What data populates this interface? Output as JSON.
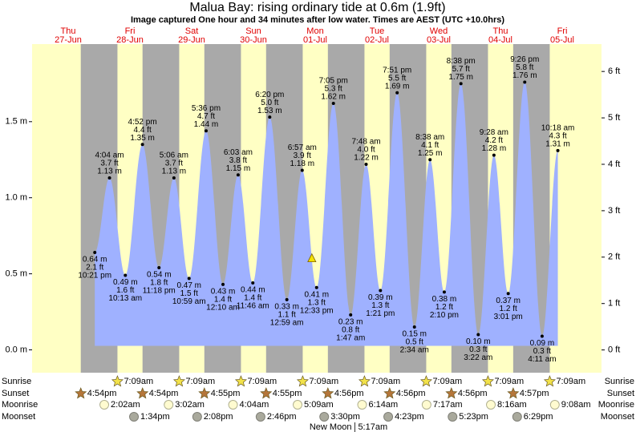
{
  "chart_data": {
    "type": "area",
    "title": "Malua Bay: rising  ordinary tide at 0.6m (1.9ft)",
    "subtitle": "Image captured One hour and 34 minutes after low water. Times are AEST (UTC +10.0hrs)",
    "now": {
      "m": 0.6,
      "ft": 1.9
    },
    "color": "#9fb1ff",
    "day_color": "#ffffc4",
    "night_color": "#a9a9a9",
    "date_color": "#e00000",
    "ylim": [
      -0.15,
      2.01
    ],
    "yticks": [
      {
        "value": 0,
        "label": "0.0 m"
      },
      {
        "value": 0.5,
        "label": "0.5 m"
      },
      {
        "value": 1,
        "label": "1.0 m"
      },
      {
        "value": 1.5,
        "label": "1.5 m"
      }
    ],
    "y2lim": [
      -0.49,
      6.59
    ],
    "y2ticks": [
      {
        "value": 0,
        "label": "0 ft"
      },
      {
        "value": 1,
        "label": "1 ft"
      },
      {
        "value": 2,
        "label": "2 ft"
      },
      {
        "value": 3,
        "label": "3 ft"
      },
      {
        "value": 4,
        "label": "4 ft"
      },
      {
        "value": 5,
        "label": "5 ft"
      },
      {
        "value": 6,
        "label": "6 ft"
      }
    ],
    "row_labels": {
      "sunrise": "Sunrise",
      "sunset": "Sunset",
      "moonrise": "Moonrise",
      "moonset": "Moonset"
    },
    "days": [
      {
        "weekday": "Thu",
        "date": "27-Jun",
        "sunset": "4:54pm",
        "tides": [
          {
            "time": "10:21 pm",
            "m": 0.64,
            "m_label": "0.64 m",
            "ft": 2.1,
            "ft_label": "2.1 ft"
          }
        ]
      },
      {
        "weekday": "Fri",
        "date": "28-Jun",
        "sunrise": "7:09am",
        "sunset": "4:54pm",
        "moonrise": "2:02am",
        "moonset": "1:34pm",
        "tides": [
          {
            "time": "4:04 am",
            "m": 1.13,
            "m_label": "1.13 m",
            "ft": 3.7,
            "ft_label": "3.7 ft"
          },
          {
            "time": "10:13 am",
            "m": 0.49,
            "m_label": "0.49 m",
            "ft": 1.6,
            "ft_label": "1.6 ft"
          },
          {
            "time": "4:52 pm",
            "m": 1.35,
            "m_label": "1.35 m",
            "ft": 4.4,
            "ft_label": "4.4 ft"
          },
          {
            "time": "11:18 pm",
            "m": 0.54,
            "m_label": "0.54 m",
            "ft": 1.8,
            "ft_label": "1.8 ft"
          }
        ]
      },
      {
        "weekday": "Sat",
        "date": "29-Jun",
        "sunrise": "7:09am",
        "sunset": "4:55pm",
        "moonrise": "3:02am",
        "moonset": "2:08pm",
        "tides": [
          {
            "time": "5:06 am",
            "m": 1.13,
            "m_label": "1.13 m",
            "ft": 3.7,
            "ft_label": "3.7 ft"
          },
          {
            "time": "10:59 am",
            "m": 0.47,
            "m_label": "0.47 m",
            "ft": 1.5,
            "ft_label": "1.5 ft"
          },
          {
            "time": "5:36 pm",
            "m": 1.44,
            "m_label": "1.44 m",
            "ft": 4.7,
            "ft_label": "4.7 ft"
          }
        ]
      },
      {
        "weekday": "Sun",
        "date": "30-Jun",
        "sunrise": "7:09am",
        "sunset": "4:55pm",
        "moonrise": "4:04am",
        "moonset": "2:46pm",
        "tides": [
          {
            "time": "12:10 am",
            "m": 0.43,
            "m_label": "0.43 m",
            "ft": 1.4,
            "ft_label": "1.4 ft"
          },
          {
            "time": "6:03 am",
            "m": 1.15,
            "m_label": "1.15 m",
            "ft": 3.8,
            "ft_label": "3.8 ft"
          },
          {
            "time": "11:46 am",
            "m": 0.44,
            "m_label": "0.44 m",
            "ft": 1.4,
            "ft_label": "1.4 ft"
          },
          {
            "time": "6:20 pm",
            "m": 1.53,
            "m_label": "1.53 m",
            "ft": 5.0,
            "ft_label": "5.0 ft"
          }
        ]
      },
      {
        "weekday": "Mon",
        "date": "01-Jul",
        "sunrise": "7:09am",
        "sunset": "4:56pm",
        "moonrise": "5:09am",
        "moonset": "3:30pm",
        "tides": [
          {
            "time": "12:59 am",
            "m": 0.33,
            "m_label": "0.33 m",
            "ft": 1.1,
            "ft_label": "1.1 ft"
          },
          {
            "time": "6:57 am",
            "m": 1.18,
            "m_label": "1.18 m",
            "ft": 3.9,
            "ft_label": "3.9 ft"
          },
          {
            "time": "12:33 pm",
            "m": 0.41,
            "m_label": "0.41 m",
            "ft": 1.3,
            "ft_label": "1.3 ft"
          },
          {
            "time": "7:05 pm",
            "m": 1.62,
            "m_label": "1.62 m",
            "ft": 5.3,
            "ft_label": "5.3 ft"
          }
        ]
      },
      {
        "weekday": "Tue",
        "date": "02-Jul",
        "sunrise": "7:09am",
        "sunset": "4:56pm",
        "moonrise": "6:14am",
        "moonset": "4:23pm",
        "moon_phase": {
          "name": "New Moon",
          "time": "5:17am"
        },
        "tides": [
          {
            "time": "1:47 am",
            "m": 0.23,
            "m_label": "0.23 m",
            "ft": 0.8,
            "ft_label": "0.8 ft"
          },
          {
            "time": "7:48 am",
            "m": 1.22,
            "m_label": "1.22 m",
            "ft": 4.0,
            "ft_label": "4.0 ft"
          },
          {
            "time": "1:21 pm",
            "m": 0.39,
            "m_label": "0.39 m",
            "ft": 1.3,
            "ft_label": "1.3 ft"
          },
          {
            "time": "7:51 pm",
            "m": 1.69,
            "m_label": "1.69 m",
            "ft": 5.5,
            "ft_label": "5.5 ft"
          }
        ]
      },
      {
        "weekday": "Wed",
        "date": "03-Jul",
        "sunrise": "7:09am",
        "sunset": "4:56pm",
        "moonrise": "7:17am",
        "moonset": "5:23pm",
        "tides": [
          {
            "time": "2:34 am",
            "m": 0.15,
            "m_label": "0.15 m",
            "ft": 0.5,
            "ft_label": "0.5 ft"
          },
          {
            "time": "8:38 am",
            "m": 1.25,
            "m_label": "1.25 m",
            "ft": 4.1,
            "ft_label": "4.1 ft"
          },
          {
            "time": "2:10 pm",
            "m": 0.38,
            "m_label": "0.38 m",
            "ft": 1.2,
            "ft_label": "1.2 ft"
          },
          {
            "time": "8:38 pm",
            "m": 1.75,
            "m_label": "1.75 m",
            "ft": 5.7,
            "ft_label": "5.7 ft"
          }
        ]
      },
      {
        "weekday": "Thu",
        "date": "04-Jul",
        "sunrise": "7:09am",
        "sunset": "4:57pm",
        "moonrise": "8:16am",
        "moonset": "6:29pm",
        "tides": [
          {
            "time": "3:22 am",
            "m": 0.1,
            "m_label": "0.10 m",
            "ft": 0.3,
            "ft_label": "0.3 ft"
          },
          {
            "time": "9:28 am",
            "m": 1.28,
            "m_label": "1.28 m",
            "ft": 4.2,
            "ft_label": "4.2 ft"
          },
          {
            "time": "3:01 pm",
            "m": 0.37,
            "m_label": "0.37 m",
            "ft": 1.2,
            "ft_label": "1.2 ft"
          },
          {
            "time": "9:26 pm",
            "m": 1.76,
            "m_label": "1.76 m",
            "ft": 5.8,
            "ft_label": "5.8 ft"
          }
        ]
      },
      {
        "weekday": "Fri",
        "date": "05-Jul",
        "sunrise": "7:09am",
        "moonrise": "9:08am",
        "tides": [
          {
            "time": "4:11 am",
            "m": 0.09,
            "m_label": "0.09 m",
            "ft": 0.3,
            "ft_label": "0.3 ft"
          },
          {
            "time": "10:18 am",
            "m": 1.31,
            "m_label": "1.31 m",
            "ft": 4.3,
            "ft_label": "4.3 ft"
          }
        ]
      }
    ]
  }
}
